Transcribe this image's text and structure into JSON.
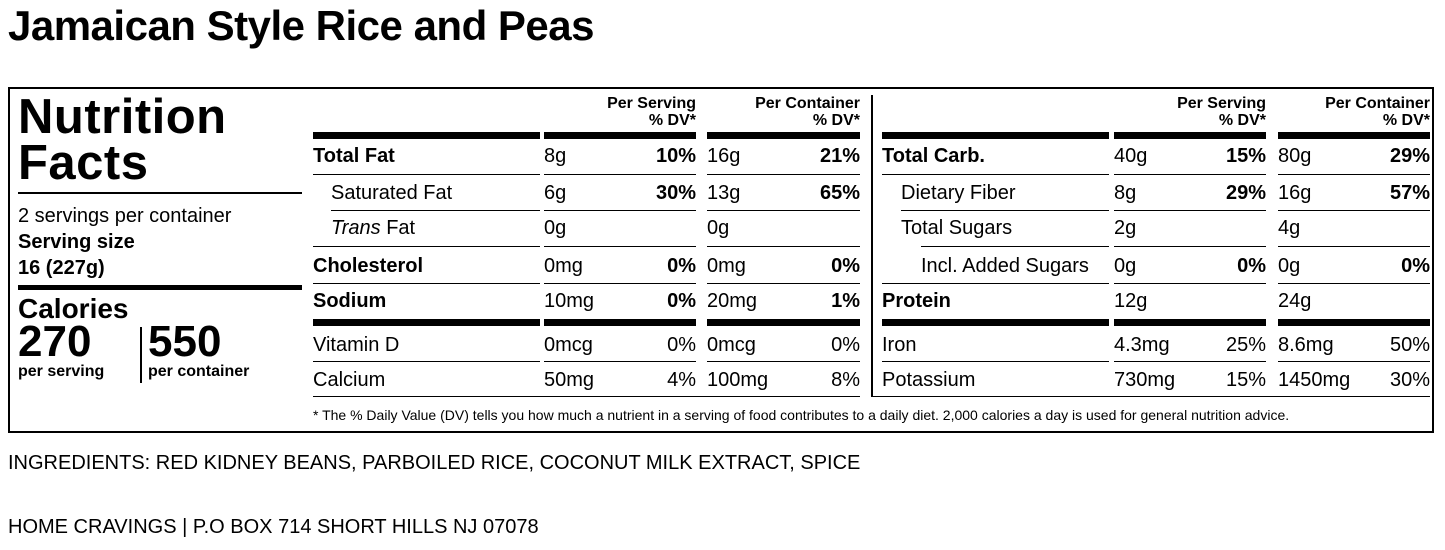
{
  "title": "Jamaican Style Rice and Peas",
  "panel": {
    "heading_line1": "Nutrition",
    "heading_line2": "Facts",
    "servings": "2 servings per container",
    "serving_size_label": "Serving size",
    "serving_size_value": "16 (227g)",
    "calories_label": "Calories",
    "calories_per_serving": "270",
    "calories_per_serving_label": "per serving",
    "calories_per_container": "550",
    "calories_per_container_label": "per container"
  },
  "headers": {
    "per_serving": "Per Serving",
    "per_container": "Per Container",
    "dv": "% DV*"
  },
  "left_rows": [
    {
      "name": "Total Fat",
      "s_amt": "8g",
      "s_dv": "10%",
      "c_amt": "16g",
      "c_dv": "21%"
    },
    {
      "name": "Saturated Fat",
      "s_amt": "6g",
      "s_dv": "30%",
      "c_amt": "13g",
      "c_dv": "65%"
    },
    {
      "name_italic": "Trans",
      "name_rest": " Fat",
      "s_amt": "0g",
      "s_dv": "",
      "c_amt": "0g",
      "c_dv": ""
    },
    {
      "name": "Cholesterol",
      "s_amt": "0mg",
      "s_dv": "0%",
      "c_amt": "0mg",
      "c_dv": "0%"
    },
    {
      "name": "Sodium",
      "s_amt": "10mg",
      "s_dv": "0%",
      "c_amt": "20mg",
      "c_dv": "1%"
    },
    {
      "name": "Vitamin D",
      "s_amt": "0mcg",
      "s_dv": "0%",
      "c_amt": "0mcg",
      "c_dv": "0%"
    },
    {
      "name": "Calcium",
      "s_amt": "50mg",
      "s_dv": "4%",
      "c_amt": "100mg",
      "c_dv": "8%"
    }
  ],
  "right_rows": [
    {
      "name": "Total Carb.",
      "s_amt": "40g",
      "s_dv": "15%",
      "c_amt": "80g",
      "c_dv": "29%"
    },
    {
      "name": "Dietary Fiber",
      "s_amt": "8g",
      "s_dv": "29%",
      "c_amt": "16g",
      "c_dv": "57%"
    },
    {
      "name": "Total Sugars",
      "s_amt": "2g",
      "s_dv": "",
      "c_amt": "4g",
      "c_dv": ""
    },
    {
      "name": "Incl. Added Sugars",
      "s_amt": "0g",
      "s_dv": "0%",
      "c_amt": "0g",
      "c_dv": "0%"
    },
    {
      "name": "Protein",
      "s_amt": "12g",
      "s_dv": "",
      "c_amt": "24g",
      "c_dv": ""
    },
    {
      "name": "Iron",
      "s_amt": "4.3mg",
      "s_dv": "25%",
      "c_amt": "8.6mg",
      "c_dv": "50%"
    },
    {
      "name": "Potassium",
      "s_amt": "730mg",
      "s_dv": "15%",
      "c_amt": "1450mg",
      "c_dv": "30%"
    }
  ],
  "footnote": "* The % Daily Value (DV) tells you how much a nutrient in a serving of food contributes to a daily diet. 2,000 calories a day is used for general nutrition advice.",
  "ingredients": "INGREDIENTS: RED KIDNEY BEANS, PARBOILED RICE, COCONUT MILK EXTRACT, SPICE",
  "address": "HOME CRAVINGS | P.O BOX 714 SHORT HILLS NJ 07078"
}
